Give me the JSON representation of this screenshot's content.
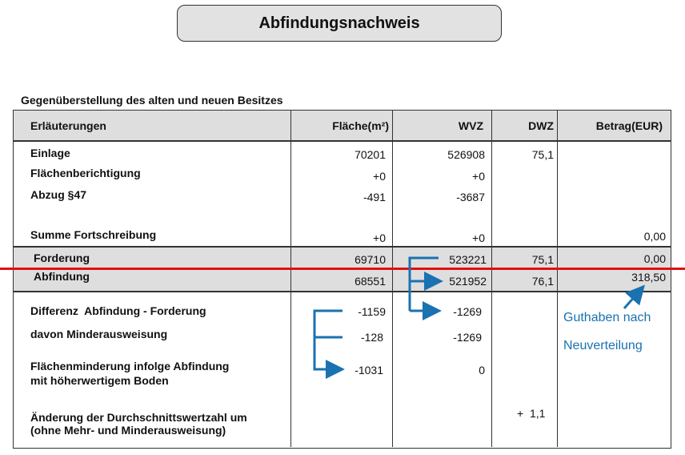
{
  "title": "Abfindungsnachweis",
  "subtitle": "Gegenüberstellung des alten und neuen Besitzes",
  "columns": [
    "Erläuterungen",
    "Fläche(m²)",
    "WVZ",
    "DWZ",
    "Betrag(EUR)"
  ],
  "rows": {
    "einlage": {
      "label": "Einlage",
      "flaeche": "70201",
      "wvz": "526908",
      "dwz": "75,1"
    },
    "flaechenberichtigung": {
      "label": "Flächenberichtigung",
      "flaeche": "+0",
      "wvz": "+0"
    },
    "abzug": {
      "label": "Abzug §47",
      "flaeche": "-491",
      "wvz": "-3687"
    },
    "summe": {
      "label": "Summe Fortschreibung",
      "flaeche": "+0",
      "wvz": "+0",
      "betrag": "0,00"
    },
    "forderung": {
      "label": "Forderung",
      "flaeche": "69710",
      "wvz": "523221",
      "dwz": "75,1",
      "betrag": "0,00"
    },
    "abfindung": {
      "label": "Abfindung",
      "flaeche": "68551",
      "wvz": "521952",
      "dwz": "76,1",
      "betrag": "318,50"
    },
    "differenz": {
      "label": "Differenz  Abfindung - Forderung",
      "flaeche": "-1159",
      "wvz": "-1269"
    },
    "minder": {
      "label": "davon Minderausweisung",
      "flaeche": "-128",
      "wvz": "-1269"
    },
    "flaechenminderung": {
      "label_line1": "Flächenminderung infolge Abfindung",
      "label_line2": "mit höherwertigem Boden",
      "flaeche": "-1031",
      "wvz": "0"
    },
    "aenderung": {
      "label_line1": "Änderung der Durchschnittswertzahl um",
      "label_line2": "(ohne Mehr- und Minderausweisung)",
      "dwz": "+  1,1"
    }
  },
  "annotation": {
    "line1": "Guthaben nach",
    "line2": "Neuverteilung"
  },
  "colors": {
    "arrow": "#1a72b0",
    "highlight_line": "#e01010",
    "band": "#dedede"
  }
}
